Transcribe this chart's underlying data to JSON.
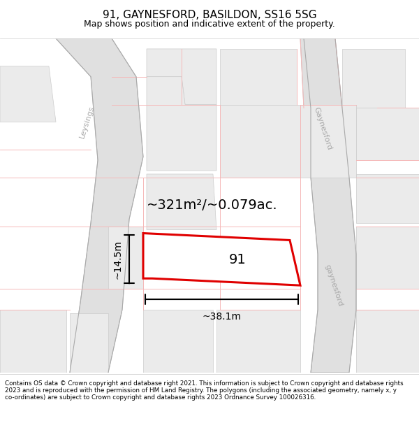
{
  "title": "91, GAYNESFORD, BASILDON, SS16 5SG",
  "subtitle": "Map shows position and indicative extent of the property.",
  "footer": "Contains OS data © Crown copyright and database right 2021. This information is subject to Crown copyright and database rights 2023 and is reproduced with the permission of HM Land Registry. The polygons (including the associated geometry, namely x, y co-ordinates) are subject to Crown copyright and database rights 2023 Ordnance Survey 100026316.",
  "area_label": "~321m²/~0.079ac.",
  "property_number": "91",
  "width_label": "~38.1m",
  "height_label": "~14.5m",
  "map_bg": "#ffffff",
  "block_color": "#ebebeb",
  "block_border": "#cccccc",
  "red_line_color": "#e00000",
  "pink_line": "#f5b8b8",
  "road_fill": "#e8e8e8",
  "road_label_color": "#aaaaaa",
  "leysings_road_fill": "#e0e0e0",
  "gaynesford_road_fill": "#e0e0e0",
  "title_fontsize": 11,
  "subtitle_fontsize": 9,
  "footer_fontsize": 6.3
}
